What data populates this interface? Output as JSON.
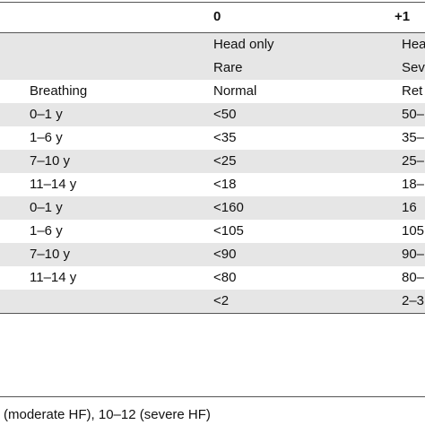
{
  "table": {
    "header": [
      "0",
      "+1"
    ],
    "rows": [
      [
        "",
        "Head only",
        "Hea"
      ],
      [
        "",
        "Rare",
        "Seve"
      ],
      [
        "Breathing",
        "Normal",
        "Ret"
      ],
      [
        "0–1 y",
        "<50",
        "50–"
      ],
      [
        "1–6 y",
        "<35",
        "35–"
      ],
      [
        "7–10 y",
        "<25",
        "25–"
      ],
      [
        "11–14 y",
        "<18",
        "18–"
      ],
      [
        "0–1 y",
        "<160",
        "16"
      ],
      [
        "1–6 y",
        "<105",
        "105"
      ],
      [
        "7–10 y",
        "<90",
        "90–"
      ],
      [
        "11–14 y",
        "<80",
        "80–"
      ],
      [
        "",
        "<2",
        "2–3"
      ]
    ],
    "shaded": [
      true,
      true,
      false,
      true,
      false,
      true,
      false,
      true,
      false,
      true,
      false,
      true
    ]
  },
  "footnote": "(moderate HF), 10–12 (severe HF)"
}
